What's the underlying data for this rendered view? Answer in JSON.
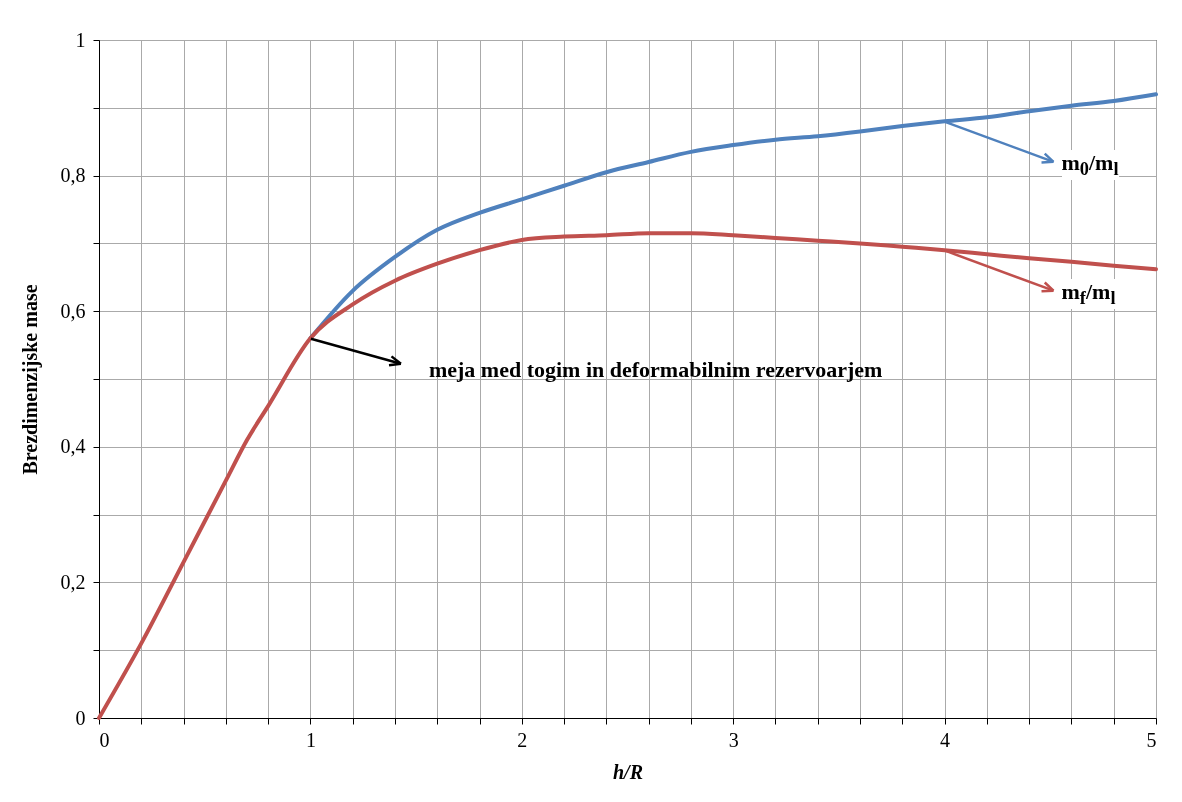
{
  "chart_data": {
    "type": "line",
    "xlabel": "h/R",
    "ylabel": "Brezdimenzijske mase",
    "x": [
      0,
      0.2,
      0.4,
      0.6,
      0.7,
      0.8,
      1,
      1.2,
      1.4,
      1.6,
      1.8,
      2,
      2.2,
      2.4,
      2.6,
      2.8,
      3,
      3.2,
      3.4,
      3.6,
      3.8,
      4,
      4.2,
      4.4,
      4.6,
      4.8,
      5
    ],
    "series": [
      {
        "name": "m$_{0}$/m$_{l}$",
        "color": "#4f81bd",
        "values": [
          null,
          null,
          null,
          null,
          null,
          null,
          0.56,
          0.63,
          0.68,
          0.72,
          0.745,
          0.765,
          0.785,
          0.805,
          0.82,
          0.835,
          0.845,
          0.853,
          0.858,
          0.865,
          0.873,
          0.88,
          0.886,
          0.895,
          0.903,
          0.91,
          0.92
        ]
      },
      {
        "name": "m$_{f}$/m$_{l}$",
        "color": "#c0504d",
        "values": [
          0,
          0.11,
          0.23,
          0.35,
          0.41,
          0.46,
          0.56,
          0.61,
          0.645,
          0.67,
          0.69,
          0.705,
          0.71,
          0.712,
          0.715,
          0.715,
          0.712,
          0.708,
          0.704,
          0.7,
          0.695,
          0.69,
          0.684,
          0.678,
          0.673,
          0.667,
          0.662
        ]
      }
    ],
    "annotations": [
      {
        "text": "meja med togim in deformabilnim rezervoarjem",
        "x": 1,
        "y": 0.56
      }
    ],
    "xlim": [
      0,
      5
    ],
    "ylim": [
      0,
      1
    ],
    "xticks": [
      0,
      {
        "value": 0.2,
        "label": null
      },
      {
        "value": 0.4,
        "label": null
      },
      {
        "value": 0.6,
        "label": null
      },
      {
        "value": 0.8,
        "label": null
      },
      1,
      {
        "value": 1.2,
        "label": null
      },
      {
        "value": 1.4,
        "label": null
      },
      {
        "value": 1.6,
        "label": null
      },
      {
        "value": 1.8,
        "label": null
      },
      2,
      {
        "value": 2.2,
        "label": null
      },
      {
        "value": 2.4,
        "label": null
      },
      {
        "value": 2.6,
        "label": null
      },
      {
        "value": 2.8,
        "label": null
      },
      3,
      {
        "value": 3.2,
        "label": null
      },
      {
        "value": 3.4,
        "label": null
      },
      {
        "value": 3.6,
        "label": null
      },
      {
        "value": 3.8,
        "label": null
      },
      4,
      {
        "value": 4.2,
        "label": null
      },
      {
        "value": 4.4,
        "label": null
      },
      {
        "value": 4.6,
        "label": null
      },
      {
        "value": 4.8,
        "label": null
      },
      5
    ],
    "yticks": [
      0,
      {
        "value": 0.1,
        "label": null
      },
      {
        "value": 0.2,
        "label": "0,2"
      },
      {
        "value": 0.3,
        "label": null
      },
      {
        "value": 0.4,
        "label": "0,4"
      },
      {
        "value": 0.5,
        "label": null
      },
      {
        "value": 0.6,
        "label": "0,6"
      },
      {
        "value": 0.7,
        "label": null
      },
      {
        "value": 0.8,
        "label": "0,8"
      },
      {
        "value": 0.9,
        "label": null
      },
      1
    ],
    "grid": true,
    "legend": "right",
    "line_style": "solid"
  }
}
